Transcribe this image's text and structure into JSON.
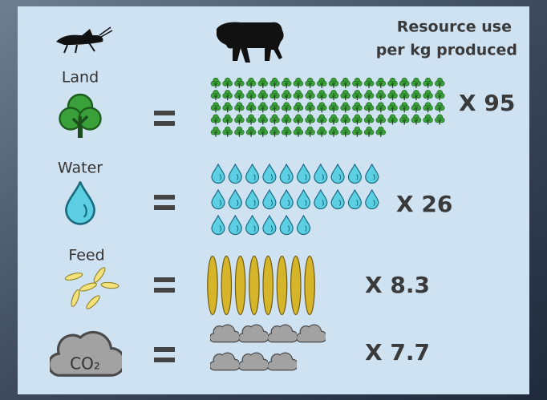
{
  "header": {
    "title_lines": [
      "Resource use",
      "per kg produced"
    ]
  },
  "rows": [
    {
      "label": "Land",
      "value": 95,
      "value_label": "X 95"
    },
    {
      "label": "Water",
      "value": 26,
      "value_label": "X 26"
    },
    {
      "label": "Feed",
      "value": 8.3,
      "value_label": "X 8.3"
    },
    {
      "label": "CO₂",
      "value": 7.7,
      "value_label": "X 7.7"
    }
  ]
}
